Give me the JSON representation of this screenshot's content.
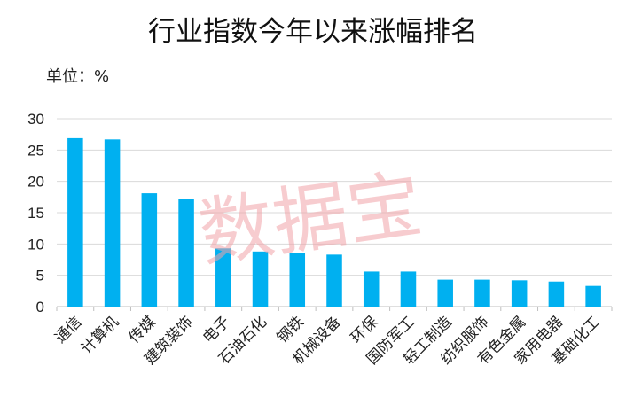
{
  "chart_data": {
    "type": "bar",
    "title": "行业指数今年以来涨幅排名",
    "unit_label": "单位：%",
    "xlabel": "",
    "ylabel": "",
    "ylim": [
      0,
      30
    ],
    "yticks": [
      0,
      5,
      10,
      15,
      20,
      25,
      30
    ],
    "grid": true,
    "legend": "none",
    "bar_color": "#00b0f0",
    "categories": [
      "通信",
      "计算机",
      "传媒",
      "建筑装饰",
      "电子",
      "石油石化",
      "钢铁",
      "机械设备",
      "环保",
      "国防军工",
      "轻工制造",
      "纺织服饰",
      "有色金属",
      "家用电器",
      "基础化工"
    ],
    "values": [
      26.9,
      26.7,
      18.1,
      17.2,
      9.3,
      8.8,
      8.6,
      8.3,
      5.6,
      5.6,
      4.3,
      4.3,
      4.2,
      4.0,
      3.3
    ]
  },
  "watermark": "数据宝",
  "colors": {
    "grid": "#d9d9d9",
    "axis": "#bfbfbf",
    "watermark": "#f2a3a8"
  }
}
